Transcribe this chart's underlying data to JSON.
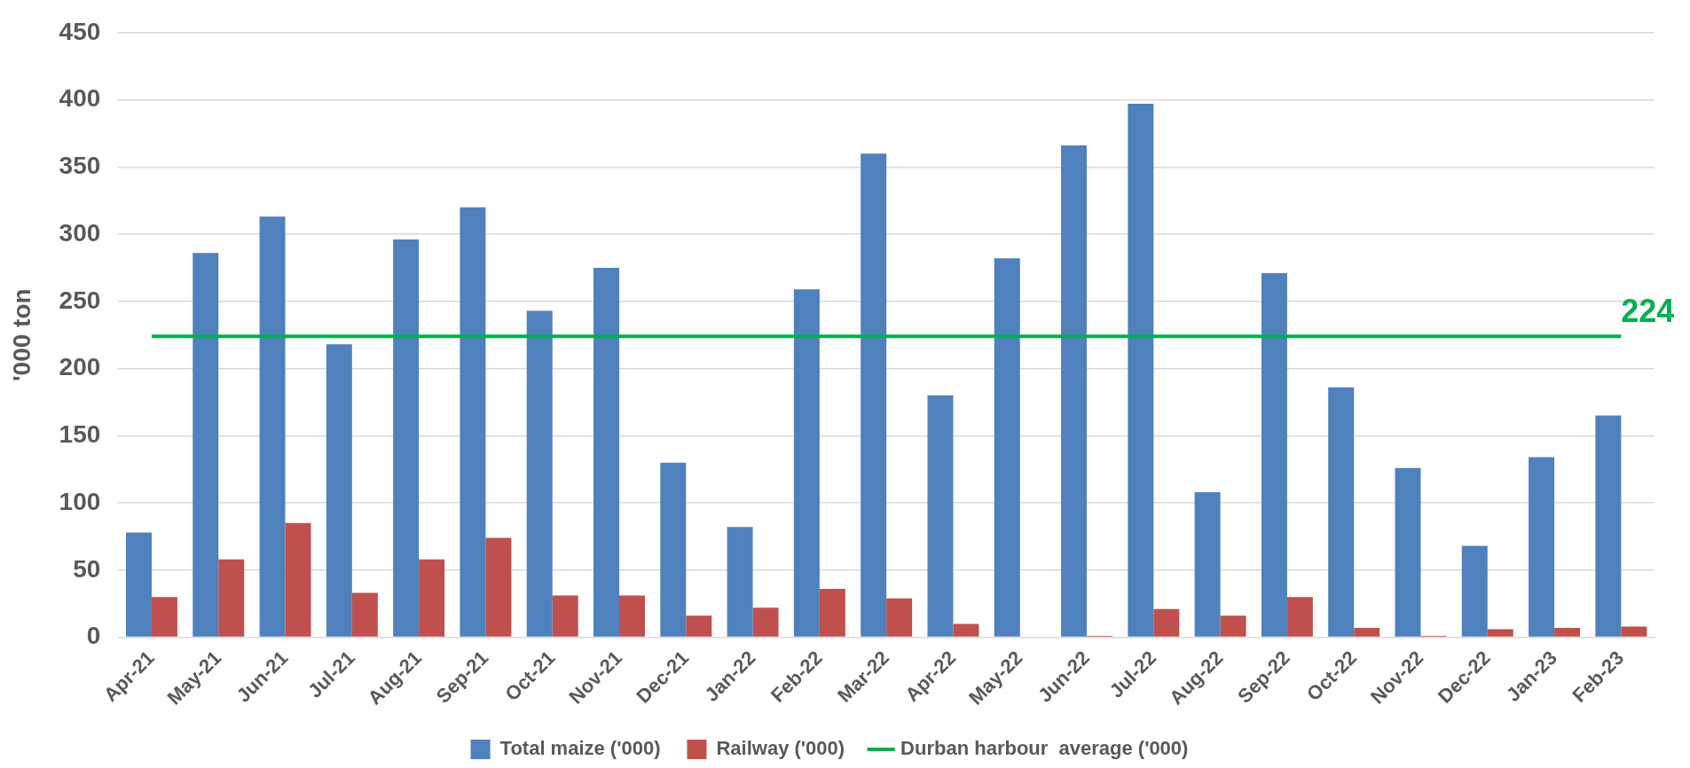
{
  "chart_data": {
    "type": "bar",
    "ylabel": "'000 ton",
    "categories": [
      "Apr-21",
      "May-21",
      "Jun-21",
      "Jul-21",
      "Aug-21",
      "Sep-21",
      "Oct-21",
      "Nov-21",
      "Dec-21",
      "Jan-22",
      "Feb-22",
      "Mar-22",
      "Apr-22",
      "May-22",
      "Jun-22",
      "Jul-22",
      "Aug-22",
      "Sep-22",
      "Oct-22",
      "Nov-22",
      "Dec-22",
      "Jan-23",
      "Feb-23"
    ],
    "series": [
      {
        "name": "Total maize ('000)",
        "color": "#4f81bd",
        "values": [
          78,
          286,
          313,
          218,
          296,
          320,
          243,
          275,
          130,
          82,
          259,
          360,
          180,
          282,
          366,
          397,
          108,
          271,
          186,
          126,
          68,
          134,
          165
        ]
      },
      {
        "name": "Railway ('000)",
        "color": "#c0504d",
        "values": [
          30,
          58,
          85,
          33,
          58,
          74,
          31,
          31,
          16,
          22,
          36,
          29,
          10,
          0,
          1,
          21,
          16,
          30,
          7,
          1,
          6,
          7,
          8
        ]
      },
      {
        "name": "Durban harbour  average ('000)",
        "type": "line",
        "color": "#00b050",
        "values": [
          224,
          224,
          224,
          224,
          224,
          224,
          224,
          224,
          224,
          224,
          224,
          224,
          224,
          224,
          224,
          224,
          224,
          224,
          224,
          224,
          224,
          224,
          224
        ]
      }
    ],
    "annotations": [
      {
        "text": "224",
        "x": "Feb-23",
        "y": 224
      }
    ],
    "ylim": [
      0,
      450
    ],
    "yticks": [
      0,
      50,
      100,
      150,
      200,
      250,
      300,
      350,
      400,
      450
    ],
    "grid": "y",
    "legend": "bottom",
    "marker": "none"
  }
}
